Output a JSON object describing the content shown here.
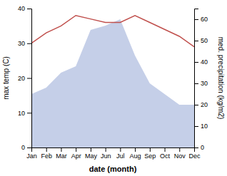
{
  "chart_data": {
    "type": "line",
    "categories": [
      "Jan",
      "Feb",
      "Mar",
      "Apr",
      "May",
      "Jun",
      "Jul",
      "Aug",
      "Sep",
      "Oct",
      "Nov",
      "Dec"
    ],
    "xlabel": "date (month)",
    "ylabel": "max temp (C)",
    "y2label": "med. precipitation (kg/m2)",
    "ylim": [
      0,
      40
    ],
    "yticks": [
      0,
      10,
      20,
      30,
      40
    ],
    "y2lim": [
      0,
      65
    ],
    "y2ticks": [
      0,
      10,
      20,
      30,
      40,
      50,
      60
    ],
    "grid": false,
    "series": [
      {
        "type": "area",
        "axis": "y2",
        "color": "#c5cfe8",
        "values": [
          25,
          28,
          35,
          38,
          55,
          57,
          60,
          43,
          30,
          25,
          20,
          20
        ]
      },
      {
        "type": "line",
        "color": "#c0504d",
        "values": [
          30,
          33,
          35,
          38,
          37,
          36,
          36,
          38,
          36,
          34,
          32,
          29
        ]
      }
    ]
  }
}
